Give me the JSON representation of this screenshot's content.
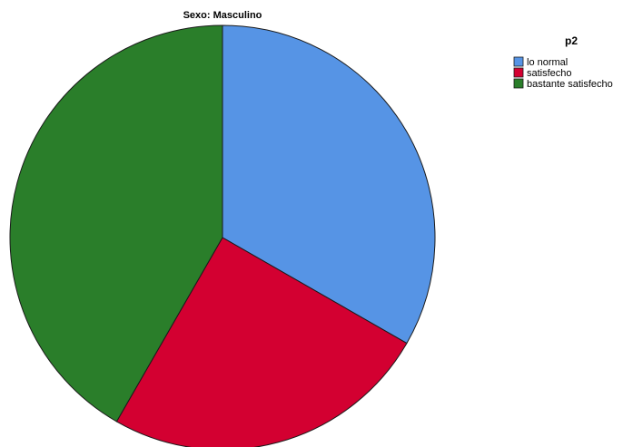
{
  "chart_data": {
    "type": "pie",
    "title": "Sexo: Masculino",
    "legend_title": "p2",
    "legend_position": "top-right",
    "categories": [
      "lo normal",
      "satisfecho",
      "bastante satisfecho"
    ],
    "values": [
      33.3,
      25.0,
      41.7
    ],
    "colors": [
      "#5694e5",
      "#d30031",
      "#2a7e2a"
    ],
    "start_angle": "12 o'clock",
    "direction": "clockwise"
  }
}
